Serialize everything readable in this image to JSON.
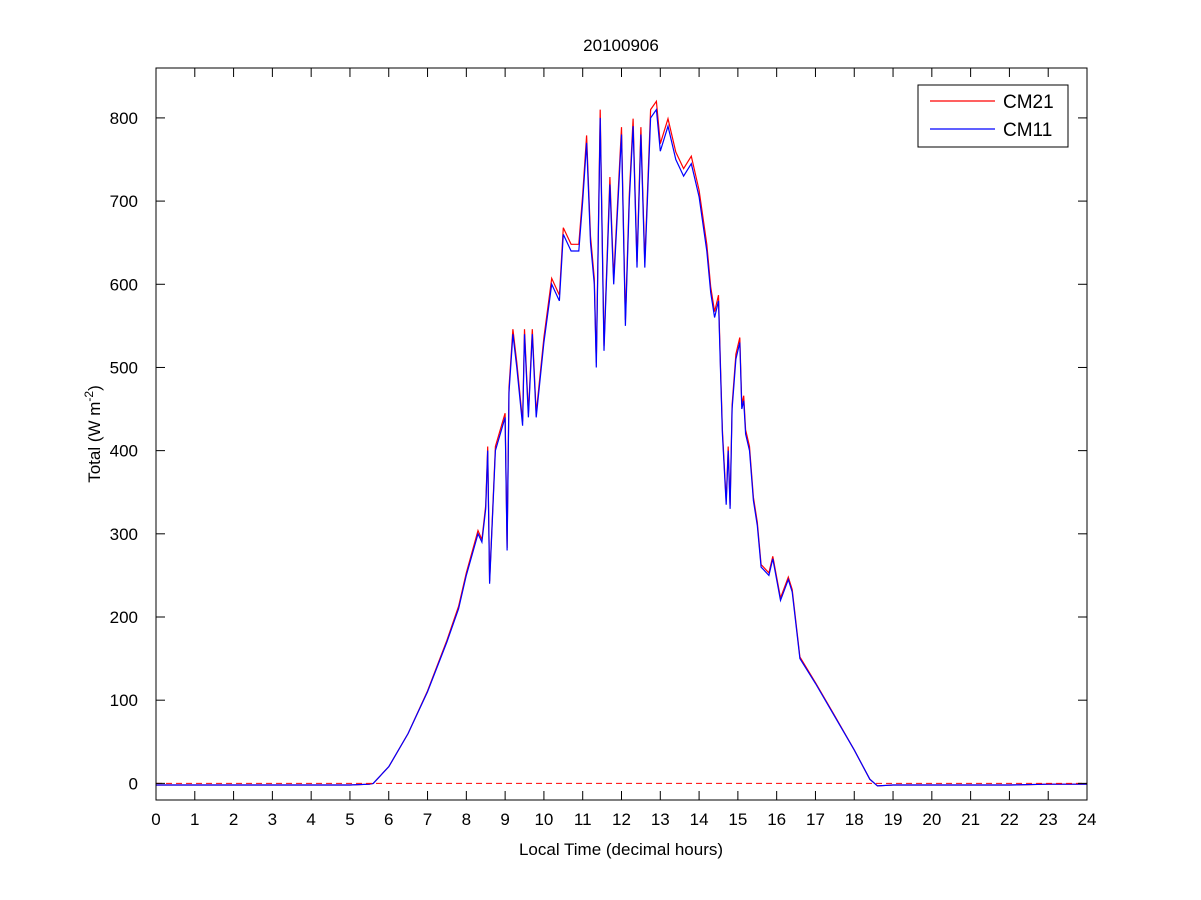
{
  "chart_data": {
    "type": "line",
    "title": "20100906",
    "xlabel": "Local Time (decimal hours)",
    "ylabel": {
      "base": "Total (W m",
      "superscript": "-2",
      "suffix": ")"
    },
    "xlim": [
      0,
      24
    ],
    "ylim": [
      -20,
      860
    ],
    "xticks": [
      0,
      1,
      2,
      3,
      4,
      5,
      6,
      7,
      8,
      9,
      10,
      11,
      12,
      13,
      14,
      15,
      16,
      17,
      18,
      19,
      20,
      21,
      22,
      23,
      24
    ],
    "yticks": [
      0,
      100,
      200,
      300,
      400,
      500,
      600,
      700,
      800
    ],
    "grid": false,
    "legend": {
      "placement": "top-right",
      "entries": [
        "CM21",
        "CM11"
      ]
    },
    "reference_line": {
      "y": 0,
      "style": "dashed",
      "color": "#ff0000"
    },
    "x": [
      0,
      1,
      2,
      3,
      4,
      5,
      5.5,
      5.6,
      6,
      6.5,
      7,
      7.5,
      7.8,
      8,
      8.3,
      8.4,
      8.5,
      8.55,
      8.6,
      8.75,
      9,
      9.05,
      9.1,
      9.2,
      9.3,
      9.45,
      9.5,
      9.6,
      9.7,
      9.8,
      10,
      10.2,
      10.4,
      10.5,
      10.7,
      10.9,
      11,
      11.1,
      11.2,
      11.3,
      11.35,
      11.45,
      11.55,
      11.7,
      11.8,
      12,
      12.1,
      12.2,
      12.3,
      12.4,
      12.5,
      12.6,
      12.75,
      12.9,
      13,
      13.2,
      13.4,
      13.6,
      13.8,
      14,
      14.2,
      14.3,
      14.4,
      14.5,
      14.55,
      14.6,
      14.7,
      14.75,
      14.8,
      14.85,
      14.95,
      15.05,
      15.1,
      15.15,
      15.2,
      15.3,
      15.4,
      15.5,
      15.6,
      15.8,
      15.9,
      16.1,
      16.3,
      16.4,
      16.6,
      17,
      17.5,
      18,
      18.4,
      18.6,
      19,
      20,
      21,
      22,
      23,
      24
    ],
    "series": [
      {
        "name": "CM21",
        "color": "#ff0000",
        "values": [
          -2,
          -2,
          -2,
          -2,
          -2,
          -2,
          -1,
          0,
          20,
          60,
          111,
          172,
          213,
          253,
          304,
          293,
          334,
          405,
          243,
          405,
          445,
          283,
          476,
          546,
          506,
          435,
          546,
          445,
          546,
          445,
          536,
          607,
          587,
          668,
          648,
          648,
          708,
          779,
          658,
          607,
          506,
          810,
          526,
          729,
          607,
          789,
          557,
          708,
          799,
          627,
          789,
          627,
          810,
          820,
          769,
          799,
          759,
          739,
          754,
          713,
          648,
          597,
          567,
          587,
          506,
          425,
          339,
          405,
          334,
          455,
          516,
          536,
          455,
          466,
          425,
          405,
          344,
          314,
          263,
          253,
          273,
          223,
          248,
          233,
          152,
          121,
          81,
          40,
          5,
          -3,
          -2,
          -2,
          -2,
          -2,
          -1,
          -1
        ]
      },
      {
        "name": "CM11",
        "color": "#0000ff",
        "values": [
          -2,
          -2,
          -2,
          -2,
          -2,
          -2,
          -1,
          0,
          20,
          60,
          110,
          170,
          210,
          250,
          300,
          290,
          330,
          400,
          240,
          400,
          440,
          280,
          470,
          540,
          500,
          430,
          540,
          440,
          540,
          440,
          530,
          600,
          580,
          660,
          640,
          640,
          700,
          770,
          650,
          600,
          500,
          800,
          520,
          720,
          600,
          780,
          550,
          700,
          790,
          620,
          780,
          620,
          800,
          810,
          760,
          790,
          750,
          730,
          745,
          705,
          640,
          590,
          560,
          580,
          500,
          420,
          335,
          400,
          330,
          450,
          510,
          530,
          450,
          460,
          420,
          400,
          340,
          310,
          260,
          250,
          270,
          220,
          245,
          230,
          150,
          120,
          80,
          40,
          5,
          -3,
          -2,
          -2,
          -2,
          -2,
          -1,
          -1
        ]
      }
    ]
  }
}
